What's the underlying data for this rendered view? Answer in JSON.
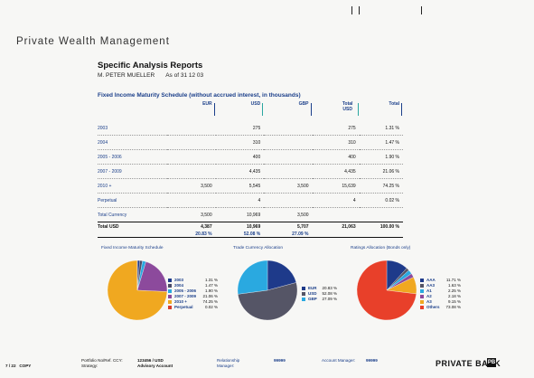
{
  "brand": "Private Wealth Management",
  "report": {
    "title": "Specific Analysis Reports",
    "client": "M. PETER MUELLER",
    "as_of": "As of 31 12 03"
  },
  "section_title": "Fixed Income Maturity Schedule (without accrued interest, in thousands)",
  "table": {
    "headers": [
      "",
      "EUR",
      "USD",
      "GBP",
      "Total USD",
      "Total"
    ],
    "rows": [
      [
        "2003",
        "",
        "275",
        "",
        "275",
        "1.31 %"
      ],
      [
        "2004",
        "",
        "310",
        "",
        "310",
        "1.47 %"
      ],
      [
        "2005 - 2006",
        "",
        "400",
        "",
        "400",
        "1.90 %"
      ],
      [
        "2007 - 2009",
        "",
        "4,435",
        "",
        "4,435",
        "21.06 %"
      ],
      [
        "2010 +",
        "3,500",
        "5,545",
        "3,500",
        "15,639",
        "74.25 %"
      ],
      [
        "Perpetual",
        "",
        "4",
        "",
        "4",
        "0.02 %"
      ],
      [
        "Total Currency",
        "3,500",
        "10,969",
        "3,500",
        "",
        ""
      ]
    ],
    "total": [
      "Total USD",
      "4,387",
      "10,969",
      "5,707",
      "21,063",
      "100.00 %"
    ],
    "total_pct": [
      "",
      "20.83 %",
      "52.08 %",
      "27.09 %",
      "",
      ""
    ]
  },
  "charts": [
    {
      "title": "Fixed Income Maturity Schedule",
      "legend": [
        {
          "name": "2003",
          "value": "1.31 %",
          "color": "#1e3a8a"
        },
        {
          "name": "2004",
          "value": "1.47 %",
          "color": "#4b4b68"
        },
        {
          "name": "2005 - 2006",
          "value": "1.90 %",
          "color": "#2aa9e0"
        },
        {
          "name": "2007 - 2009",
          "value": "21.06 %",
          "color": "#8c4a9c"
        },
        {
          "name": "2010 +",
          "value": "74.25 %",
          "color": "#f0a820"
        },
        {
          "name": "Perpetual",
          "value": "0.02 %",
          "color": "#d83c2c"
        }
      ]
    },
    {
      "title": "Trade Currency Allocation",
      "legend": [
        {
          "name": "EUR",
          "value": "20.83 %",
          "color": "#1e3a8a"
        },
        {
          "name": "USD",
          "value": "52.08 %",
          "color": "#555566"
        },
        {
          "name": "GBP",
          "value": "27.09 %",
          "color": "#2aa9e0"
        }
      ]
    },
    {
      "title": "Ratings Allocation (Bonds only)",
      "legend": [
        {
          "name": "AAA",
          "value": "11.71 %",
          "color": "#1e3a8a"
        },
        {
          "name": "AA3",
          "value": "1.63 %",
          "color": "#555566"
        },
        {
          "name": "A1",
          "value": "2.25 %",
          "color": "#2aa9e0"
        },
        {
          "name": "A2",
          "value": "2.18 %",
          "color": "#8c4a9c"
        },
        {
          "name": "A3",
          "value": "9.15 %",
          "color": "#f0a820"
        },
        {
          "name": "Others",
          "value": "73.08 %",
          "color": "#e8402a"
        }
      ]
    }
  ],
  "chart_data": [
    {
      "type": "pie",
      "title": "Fixed Income Maturity Schedule",
      "categories": [
        "2003",
        "2004",
        "2005 - 2006",
        "2007 - 2009",
        "2010 +",
        "Perpetual"
      ],
      "values": [
        1.31,
        1.47,
        1.9,
        21.06,
        74.25,
        0.02
      ],
      "colors": [
        "#1e3a8a",
        "#4b4b68",
        "#2aa9e0",
        "#8c4a9c",
        "#f0a820",
        "#d83c2c"
      ],
      "legend": "right"
    },
    {
      "type": "pie",
      "title": "Trade Currency Allocation",
      "categories": [
        "EUR",
        "USD",
        "GBP"
      ],
      "values": [
        20.83,
        52.08,
        27.09
      ],
      "colors": [
        "#1e3a8a",
        "#555566",
        "#2aa9e0"
      ],
      "legend": "right"
    },
    {
      "type": "pie",
      "title": "Ratings Allocation (Bonds only)",
      "categories": [
        "AAA",
        "AA3",
        "A1",
        "A2",
        "A3",
        "Others"
      ],
      "values": [
        11.71,
        1.63,
        2.25,
        2.18,
        9.15,
        73.08
      ],
      "colors": [
        "#1e3a8a",
        "#555566",
        "#2aa9e0",
        "#8c4a9c",
        "#f0a820",
        "#e8402a"
      ],
      "legend": "right"
    }
  ],
  "footer": {
    "page": "7 / 22",
    "copy": "COPY",
    "ref_label": "Portfolio No/Ref. CCY:",
    "ref_value": "123456 / USD",
    "strategy_label": "Strategy:",
    "strategy_value": "Advisory Account",
    "rm_label": "Relationship Manager:",
    "rm_value": "99999",
    "am_label": "Account Manager:",
    "am_value": "99999",
    "bank": "PRIVATE BANK",
    "badge": "PB"
  }
}
